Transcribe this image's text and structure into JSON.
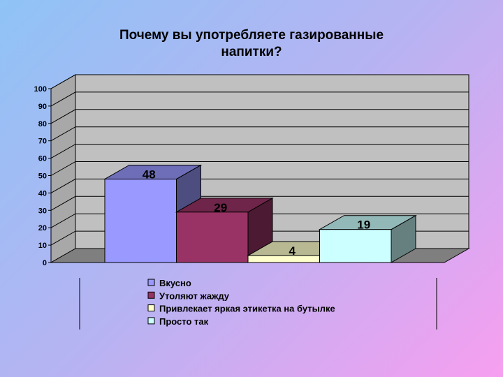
{
  "chart_data": {
    "type": "bar",
    "title_line1": "Почему вы употребляете газированные",
    "title_line2": "напитки?",
    "categories": [
      "Вкусно",
      "Утоляют жажду",
      "Привлекает яркая этикетка на бутылке",
      "Просто так"
    ],
    "values": [
      48,
      29,
      4,
      19
    ],
    "value_labels": [
      "48",
      "29",
      "4",
      "19"
    ],
    "colors": [
      "#9999ff",
      "#993366",
      "#ffffcc",
      "#ccffff"
    ],
    "yticks": [
      "0",
      "10",
      "20",
      "30",
      "40",
      "50",
      "60",
      "70",
      "80",
      "90",
      "100"
    ],
    "ylim": [
      0,
      100
    ],
    "grid": true,
    "legend_position": "bottom",
    "legend": [
      "Вкусно",
      "Утоляют жажду",
      "Привлекает яркая этикетка на бутылке",
      "Просто так"
    ]
  }
}
